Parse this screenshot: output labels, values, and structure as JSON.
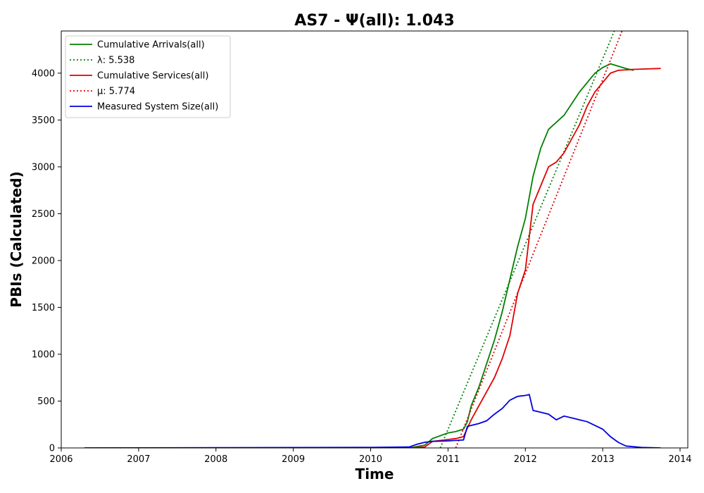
{
  "chart_data": {
    "type": "line",
    "title": "AS7 -  Ψ(all): 1.043",
    "xlabel": "Time",
    "ylabel": "PBIs (Calculated)",
    "xlim": [
      2006.0,
      2014.1
    ],
    "ylim": [
      0,
      4450
    ],
    "x_ticks": [
      2006,
      2007,
      2008,
      2009,
      2010,
      2011,
      2012,
      2013,
      2014
    ],
    "y_ticks": [
      0,
      500,
      1000,
      1500,
      2000,
      2500,
      3000,
      3500,
      4000
    ],
    "grid": false,
    "legend_position": "top-left",
    "series": [
      {
        "name": "Cumulative Arrivals(all)",
        "color": "#008000",
        "style": "solid",
        "points": [
          [
            2006.3,
            0
          ],
          [
            2010.5,
            0
          ],
          [
            2010.7,
            30
          ],
          [
            2010.8,
            100
          ],
          [
            2011.0,
            160
          ],
          [
            2011.1,
            175
          ],
          [
            2011.2,
            200
          ],
          [
            2011.25,
            280
          ],
          [
            2011.3,
            450
          ],
          [
            2011.4,
            650
          ],
          [
            2011.5,
            900
          ],
          [
            2011.6,
            1150
          ],
          [
            2011.7,
            1450
          ],
          [
            2011.8,
            1800
          ],
          [
            2011.9,
            2150
          ],
          [
            2012.0,
            2450
          ],
          [
            2012.1,
            2900
          ],
          [
            2012.2,
            3200
          ],
          [
            2012.3,
            3400
          ],
          [
            2012.5,
            3550
          ],
          [
            2012.7,
            3800
          ],
          [
            2012.9,
            4000
          ],
          [
            2013.0,
            4060
          ],
          [
            2013.1,
            4100
          ],
          [
            2013.3,
            4050
          ],
          [
            2013.4,
            4030
          ]
        ]
      },
      {
        "name": "λ: 5.538",
        "color": "#008000",
        "style": "dotted",
        "points": [
          [
            2010.9,
            0
          ],
          [
            2013.15,
            4450
          ]
        ]
      },
      {
        "name": "Cumulative Services(all)",
        "color": "#e00000",
        "style": "solid",
        "points": [
          [
            2010.5,
            0
          ],
          [
            2010.7,
            10
          ],
          [
            2010.8,
            70
          ],
          [
            2010.9,
            80
          ],
          [
            2011.1,
            100
          ],
          [
            2011.2,
            120
          ],
          [
            2011.3,
            300
          ],
          [
            2011.4,
            450
          ],
          [
            2011.5,
            600
          ],
          [
            2011.6,
            750
          ],
          [
            2011.7,
            950
          ],
          [
            2011.8,
            1200
          ],
          [
            2011.9,
            1650
          ],
          [
            2012.0,
            1900
          ],
          [
            2012.1,
            2600
          ],
          [
            2012.2,
            2800
          ],
          [
            2012.3,
            3000
          ],
          [
            2012.4,
            3050
          ],
          [
            2012.5,
            3150
          ],
          [
            2012.6,
            3300
          ],
          [
            2012.7,
            3450
          ],
          [
            2012.8,
            3650
          ],
          [
            2012.9,
            3800
          ],
          [
            2013.0,
            3900
          ],
          [
            2013.1,
            4000
          ],
          [
            2013.2,
            4030
          ],
          [
            2013.4,
            4040
          ],
          [
            2013.75,
            4050
          ]
        ]
      },
      {
        "name": "μ: 5.774",
        "color": "#e00000",
        "style": "dotted",
        "points": [
          [
            2011.1,
            0
          ],
          [
            2013.25,
            4450
          ]
        ]
      },
      {
        "name": "Measured System Size(all)",
        "color": "#0000e0",
        "style": "solid",
        "points": [
          [
            2006.3,
            0
          ],
          [
            2010.0,
            5
          ],
          [
            2010.5,
            10
          ],
          [
            2010.6,
            40
          ],
          [
            2010.7,
            60
          ],
          [
            2010.8,
            70
          ],
          [
            2011.0,
            75
          ],
          [
            2011.2,
            85
          ],
          [
            2011.25,
            230
          ],
          [
            2011.4,
            260
          ],
          [
            2011.5,
            290
          ],
          [
            2011.6,
            360
          ],
          [
            2011.7,
            420
          ],
          [
            2011.8,
            510
          ],
          [
            2011.9,
            550
          ],
          [
            2012.0,
            560
          ],
          [
            2012.05,
            570
          ],
          [
            2012.1,
            400
          ],
          [
            2012.2,
            380
          ],
          [
            2012.3,
            360
          ],
          [
            2012.4,
            300
          ],
          [
            2012.5,
            340
          ],
          [
            2012.6,
            320
          ],
          [
            2012.7,
            300
          ],
          [
            2012.8,
            280
          ],
          [
            2012.9,
            240
          ],
          [
            2013.0,
            200
          ],
          [
            2013.1,
            120
          ],
          [
            2013.2,
            60
          ],
          [
            2013.3,
            20
          ],
          [
            2013.5,
            5
          ],
          [
            2013.75,
            0
          ]
        ]
      }
    ]
  }
}
